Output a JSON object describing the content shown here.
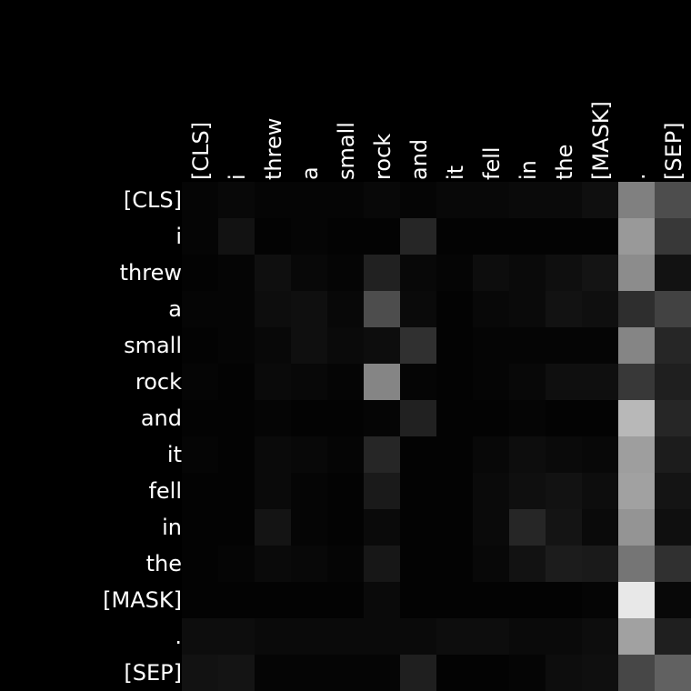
{
  "chart_data": {
    "type": "heatmap",
    "title": "",
    "xlabel": "",
    "ylabel": "",
    "colormap": "grayscale",
    "value_range": [
      0,
      1
    ],
    "x_tokens": [
      "[CLS]",
      "i",
      "threw",
      "a",
      "small",
      "rock",
      "and",
      "it",
      "fell",
      "in",
      "the",
      "[MASK]",
      ".",
      "[SEP]"
    ],
    "y_tokens": [
      "[CLS]",
      "i",
      "threw",
      "a",
      "small",
      "rock",
      "and",
      "it",
      "fell",
      "in",
      "the",
      "[MASK]",
      ".",
      "[SEP]"
    ],
    "values": [
      [
        0.02,
        0.03,
        0.02,
        0.02,
        0.02,
        0.03,
        0.02,
        0.03,
        0.03,
        0.04,
        0.04,
        0.06,
        0.5,
        0.3
      ],
      [
        0.02,
        0.07,
        0.01,
        0.02,
        0.01,
        0.01,
        0.15,
        0.01,
        0.01,
        0.01,
        0.01,
        0.01,
        0.6,
        0.22
      ],
      [
        0.01,
        0.02,
        0.06,
        0.03,
        0.02,
        0.13,
        0.03,
        0.02,
        0.05,
        0.04,
        0.06,
        0.08,
        0.55,
        0.07
      ],
      [
        0.02,
        0.02,
        0.05,
        0.06,
        0.03,
        0.3,
        0.04,
        0.01,
        0.03,
        0.04,
        0.07,
        0.06,
        0.18,
        0.26
      ],
      [
        0.01,
        0.02,
        0.03,
        0.06,
        0.04,
        0.05,
        0.19,
        0.01,
        0.02,
        0.02,
        0.02,
        0.02,
        0.52,
        0.15
      ],
      [
        0.02,
        0.01,
        0.04,
        0.03,
        0.02,
        0.52,
        0.02,
        0.01,
        0.02,
        0.03,
        0.06,
        0.06,
        0.22,
        0.12
      ],
      [
        0.01,
        0.01,
        0.02,
        0.01,
        0.01,
        0.02,
        0.13,
        0.01,
        0.01,
        0.02,
        0.01,
        0.01,
        0.72,
        0.15
      ],
      [
        0.02,
        0.01,
        0.04,
        0.03,
        0.02,
        0.15,
        0.01,
        0.01,
        0.03,
        0.05,
        0.04,
        0.03,
        0.62,
        0.11
      ],
      [
        0.01,
        0.01,
        0.04,
        0.02,
        0.01,
        0.1,
        0.01,
        0.01,
        0.04,
        0.06,
        0.07,
        0.05,
        0.63,
        0.08
      ],
      [
        0.01,
        0.01,
        0.08,
        0.02,
        0.01,
        0.04,
        0.01,
        0.01,
        0.04,
        0.15,
        0.08,
        0.04,
        0.58,
        0.06
      ],
      [
        0.01,
        0.02,
        0.04,
        0.03,
        0.02,
        0.09,
        0.01,
        0.01,
        0.03,
        0.07,
        0.11,
        0.1,
        0.46,
        0.19
      ],
      [
        0.01,
        0.01,
        0.01,
        0.01,
        0.01,
        0.04,
        0.01,
        0.01,
        0.01,
        0.01,
        0.01,
        0.02,
        0.91,
        0.03
      ],
      [
        0.05,
        0.05,
        0.04,
        0.04,
        0.04,
        0.04,
        0.04,
        0.05,
        0.05,
        0.04,
        0.04,
        0.05,
        0.63,
        0.12
      ],
      [
        0.07,
        0.08,
        0.02,
        0.02,
        0.02,
        0.02,
        0.12,
        0.01,
        0.01,
        0.02,
        0.05,
        0.06,
        0.28,
        0.38
      ]
    ]
  }
}
